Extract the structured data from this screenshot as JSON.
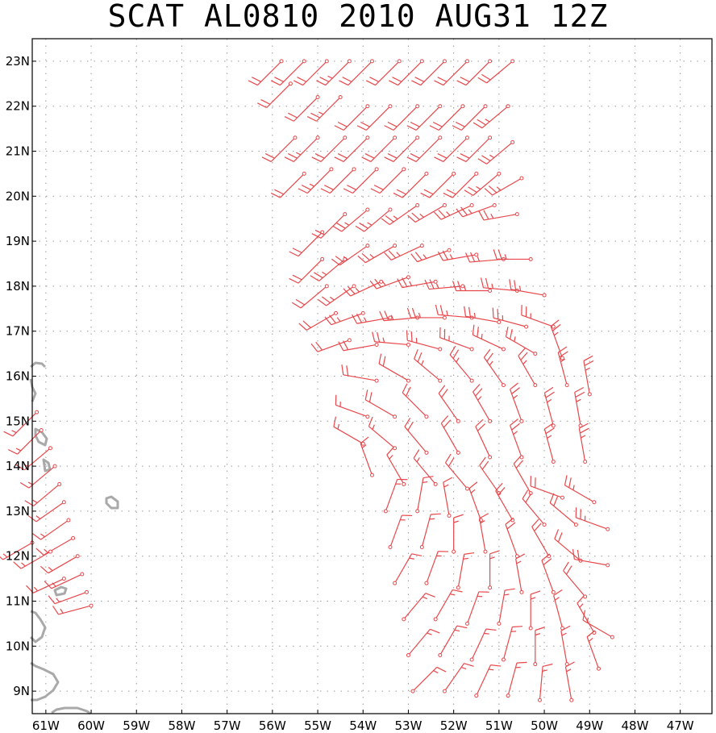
{
  "title": "SCAT AL0810 2010 AUG31 12Z",
  "map": {
    "lon_range": [
      -61.3,
      -46.3
    ],
    "lat_range": [
      8.5,
      23.5
    ],
    "lon_ticks": [
      -61,
      -60,
      -59,
      -58,
      -57,
      -56,
      -55,
      -54,
      -53,
      -52,
      -51,
      -50,
      -49,
      -48,
      -47
    ],
    "lat_ticks": [
      9,
      10,
      11,
      12,
      13,
      14,
      15,
      16,
      17,
      18,
      19,
      20,
      21,
      22,
      23
    ],
    "lon_labels": [
      "61W",
      "60W",
      "59W",
      "58W",
      "57W",
      "56W",
      "55W",
      "54W",
      "53W",
      "52W",
      "51W",
      "50W",
      "49W",
      "48W",
      "47W"
    ],
    "lat_labels": [
      "9N",
      "10N",
      "11N",
      "12N",
      "13N",
      "14N",
      "15N",
      "16N",
      "17N",
      "18N",
      "19N",
      "20N",
      "21N",
      "22N",
      "23N"
    ],
    "grid": "dotted",
    "colors": {
      "barb": "#e8474b",
      "coast": "#a9a9a9",
      "grid": "#9a9a9a",
      "frame": "#000000"
    }
  },
  "wind_barbs": [
    {
      "lon": -55.8,
      "lat": 23.0,
      "dir": 225,
      "spd": 20
    },
    {
      "lon": -55.3,
      "lat": 23.0,
      "dir": 225,
      "spd": 20
    },
    {
      "lon": -54.8,
      "lat": 23.0,
      "dir": 225,
      "spd": 20
    },
    {
      "lon": -54.3,
      "lat": 23.0,
      "dir": 225,
      "spd": 25
    },
    {
      "lon": -53.8,
      "lat": 23.0,
      "dir": 225,
      "spd": 20
    },
    {
      "lon": -53.2,
      "lat": 23.0,
      "dir": 225,
      "spd": 20
    },
    {
      "lon": -52.7,
      "lat": 23.0,
      "dir": 225,
      "spd": 20
    },
    {
      "lon": -52.2,
      "lat": 23.0,
      "dir": 225,
      "spd": 20
    },
    {
      "lon": -51.7,
      "lat": 23.0,
      "dir": 225,
      "spd": 20
    },
    {
      "lon": -51.2,
      "lat": 23.0,
      "dir": 225,
      "spd": 20
    },
    {
      "lon": -50.7,
      "lat": 23.0,
      "dir": 230,
      "spd": 20
    },
    {
      "lon": -55.6,
      "lat": 22.5,
      "dir": 225,
      "spd": 20
    },
    {
      "lon": -55.0,
      "lat": 22.2,
      "dir": 225,
      "spd": 20
    },
    {
      "lon": -54.5,
      "lat": 22.2,
      "dir": 225,
      "spd": 25
    },
    {
      "lon": -53.9,
      "lat": 22.0,
      "dir": 225,
      "spd": 20
    },
    {
      "lon": -53.4,
      "lat": 22.0,
      "dir": 225,
      "spd": 20
    },
    {
      "lon": -52.8,
      "lat": 22.0,
      "dir": 225,
      "spd": 20
    },
    {
      "lon": -52.3,
      "lat": 22.0,
      "dir": 225,
      "spd": 20
    },
    {
      "lon": -51.8,
      "lat": 22.0,
      "dir": 225,
      "spd": 20
    },
    {
      "lon": -51.3,
      "lat": 22.0,
      "dir": 225,
      "spd": 20
    },
    {
      "lon": -50.8,
      "lat": 22.0,
      "dir": 230,
      "spd": 25
    },
    {
      "lon": -55.5,
      "lat": 21.3,
      "dir": 225,
      "spd": 20
    },
    {
      "lon": -55.0,
      "lat": 21.3,
      "dir": 225,
      "spd": 25
    },
    {
      "lon": -54.4,
      "lat": 21.3,
      "dir": 225,
      "spd": 20
    },
    {
      "lon": -53.9,
      "lat": 21.3,
      "dir": 225,
      "spd": 20
    },
    {
      "lon": -53.3,
      "lat": 21.3,
      "dir": 225,
      "spd": 20
    },
    {
      "lon": -52.8,
      "lat": 21.3,
      "dir": 225,
      "spd": 20
    },
    {
      "lon": -52.3,
      "lat": 21.3,
      "dir": 225,
      "spd": 20
    },
    {
      "lon": -51.7,
      "lat": 21.3,
      "dir": 225,
      "spd": 20
    },
    {
      "lon": -51.2,
      "lat": 21.3,
      "dir": 225,
      "spd": 20
    },
    {
      "lon": -50.7,
      "lat": 21.2,
      "dir": 230,
      "spd": 25
    },
    {
      "lon": -55.3,
      "lat": 20.5,
      "dir": 225,
      "spd": 20
    },
    {
      "lon": -54.7,
      "lat": 20.6,
      "dir": 225,
      "spd": 25
    },
    {
      "lon": -54.2,
      "lat": 20.6,
      "dir": 225,
      "spd": 20
    },
    {
      "lon": -53.7,
      "lat": 20.6,
      "dir": 225,
      "spd": 20
    },
    {
      "lon": -53.1,
      "lat": 20.6,
      "dir": 225,
      "spd": 20
    },
    {
      "lon": -52.6,
      "lat": 20.5,
      "dir": 225,
      "spd": 20
    },
    {
      "lon": -52.0,
      "lat": 20.5,
      "dir": 225,
      "spd": 20
    },
    {
      "lon": -51.5,
      "lat": 20.5,
      "dir": 225,
      "spd": 20
    },
    {
      "lon": -51.0,
      "lat": 20.5,
      "dir": 230,
      "spd": 25
    },
    {
      "lon": -50.5,
      "lat": 20.4,
      "dir": 240,
      "spd": 25
    },
    {
      "lon": -54.9,
      "lat": 19.2,
      "dir": 225,
      "spd": 20
    },
    {
      "lon": -54.4,
      "lat": 19.6,
      "dir": 225,
      "spd": 20
    },
    {
      "lon": -53.9,
      "lat": 19.7,
      "dir": 230,
      "spd": 25
    },
    {
      "lon": -53.4,
      "lat": 19.7,
      "dir": 230,
      "spd": 25
    },
    {
      "lon": -52.8,
      "lat": 19.8,
      "dir": 235,
      "spd": 25
    },
    {
      "lon": -52.2,
      "lat": 19.8,
      "dir": 240,
      "spd": 25
    },
    {
      "lon": -51.6,
      "lat": 19.8,
      "dir": 245,
      "spd": 25
    },
    {
      "lon": -51.1,
      "lat": 19.8,
      "dir": 250,
      "spd": 25
    },
    {
      "lon": -50.6,
      "lat": 19.6,
      "dir": 260,
      "spd": 25
    },
    {
      "lon": -54.9,
      "lat": 18.6,
      "dir": 225,
      "spd": 20
    },
    {
      "lon": -54.4,
      "lat": 18.6,
      "dir": 230,
      "spd": 25
    },
    {
      "lon": -53.9,
      "lat": 18.9,
      "dir": 235,
      "spd": 25
    },
    {
      "lon": -53.3,
      "lat": 18.9,
      "dir": 240,
      "spd": 25
    },
    {
      "lon": -52.7,
      "lat": 18.9,
      "dir": 245,
      "spd": 25
    },
    {
      "lon": -52.1,
      "lat": 18.8,
      "dir": 250,
      "spd": 25
    },
    {
      "lon": -51.5,
      "lat": 18.7,
      "dir": 260,
      "spd": 25
    },
    {
      "lon": -50.9,
      "lat": 18.6,
      "dir": 265,
      "spd": 25
    },
    {
      "lon": -50.3,
      "lat": 18.6,
      "dir": 270,
      "spd": 25
    },
    {
      "lon": -54.8,
      "lat": 18.0,
      "dir": 230,
      "spd": 20
    },
    {
      "lon": -54.2,
      "lat": 18.0,
      "dir": 235,
      "spd": 25
    },
    {
      "lon": -53.6,
      "lat": 18.1,
      "dir": 245,
      "spd": 25
    },
    {
      "lon": -53.0,
      "lat": 18.2,
      "dir": 250,
      "spd": 25
    },
    {
      "lon": -52.4,
      "lat": 18.1,
      "dir": 260,
      "spd": 25
    },
    {
      "lon": -51.8,
      "lat": 18.0,
      "dir": 265,
      "spd": 25
    },
    {
      "lon": -51.2,
      "lat": 17.9,
      "dir": 270,
      "spd": 25
    },
    {
      "lon": -50.6,
      "lat": 17.9,
      "dir": 275,
      "spd": 25
    },
    {
      "lon": -50.0,
      "lat": 17.8,
      "dir": 280,
      "spd": 25
    },
    {
      "lon": -54.6,
      "lat": 17.4,
      "dir": 240,
      "spd": 20
    },
    {
      "lon": -54.0,
      "lat": 17.4,
      "dir": 250,
      "spd": 25
    },
    {
      "lon": -53.4,
      "lat": 17.3,
      "dir": 260,
      "spd": 25
    },
    {
      "lon": -52.8,
      "lat": 17.3,
      "dir": 265,
      "spd": 25
    },
    {
      "lon": -52.2,
      "lat": 17.3,
      "dir": 270,
      "spd": 25
    },
    {
      "lon": -51.6,
      "lat": 17.3,
      "dir": 275,
      "spd": 25
    },
    {
      "lon": -51.0,
      "lat": 17.2,
      "dir": 280,
      "spd": 25
    },
    {
      "lon": -50.4,
      "lat": 17.1,
      "dir": 285,
      "spd": 25
    },
    {
      "lon": -49.8,
      "lat": 17.1,
      "dir": 290,
      "spd": 25
    },
    {
      "lon": -54.3,
      "lat": 16.8,
      "dir": 250,
      "spd": 20
    },
    {
      "lon": -53.7,
      "lat": 16.7,
      "dir": 260,
      "spd": 20
    },
    {
      "lon": -53.0,
      "lat": 16.7,
      "dir": 275,
      "spd": 25
    },
    {
      "lon": -52.3,
      "lat": 16.6,
      "dir": 285,
      "spd": 25
    },
    {
      "lon": -51.6,
      "lat": 16.6,
      "dir": 290,
      "spd": 25
    },
    {
      "lon": -50.9,
      "lat": 16.6,
      "dir": 295,
      "spd": 25
    },
    {
      "lon": -50.2,
      "lat": 16.5,
      "dir": 300,
      "spd": 25
    },
    {
      "lon": -49.6,
      "lat": 16.4,
      "dir": 340,
      "spd": 25
    },
    {
      "lon": -53.7,
      "lat": 15.9,
      "dir": 280,
      "spd": 20
    },
    {
      "lon": -53.0,
      "lat": 15.9,
      "dir": 300,
      "spd": 20
    },
    {
      "lon": -52.3,
      "lat": 15.9,
      "dir": 310,
      "spd": 25
    },
    {
      "lon": -51.6,
      "lat": 15.9,
      "dir": 320,
      "spd": 25
    },
    {
      "lon": -50.9,
      "lat": 15.8,
      "dir": 325,
      "spd": 25
    },
    {
      "lon": -50.2,
      "lat": 15.8,
      "dir": 330,
      "spd": 25
    },
    {
      "lon": -49.5,
      "lat": 15.8,
      "dir": 345,
      "spd": 25
    },
    {
      "lon": -49.0,
      "lat": 15.6,
      "dir": 350,
      "spd": 25
    },
    {
      "lon": -53.9,
      "lat": 15.1,
      "dir": 290,
      "spd": 15
    },
    {
      "lon": -53.3,
      "lat": 15.1,
      "dir": 300,
      "spd": 20
    },
    {
      "lon": -52.6,
      "lat": 15.1,
      "dir": 315,
      "spd": 20
    },
    {
      "lon": -51.9,
      "lat": 15.0,
      "dir": 325,
      "spd": 20
    },
    {
      "lon": -51.2,
      "lat": 15.0,
      "dir": 330,
      "spd": 25
    },
    {
      "lon": -50.5,
      "lat": 15.0,
      "dir": 340,
      "spd": 25
    },
    {
      "lon": -49.8,
      "lat": 14.9,
      "dir": 345,
      "spd": 25
    },
    {
      "lon": -49.2,
      "lat": 14.9,
      "dir": 350,
      "spd": 25
    },
    {
      "lon": -54.0,
      "lat": 14.5,
      "dir": 300,
      "spd": 15
    },
    {
      "lon": -53.3,
      "lat": 14.4,
      "dir": 310,
      "spd": 15
    },
    {
      "lon": -52.6,
      "lat": 14.3,
      "dir": 320,
      "spd": 20
    },
    {
      "lon": -51.9,
      "lat": 14.3,
      "dir": 330,
      "spd": 20
    },
    {
      "lon": -51.2,
      "lat": 14.2,
      "dir": 335,
      "spd": 20
    },
    {
      "lon": -50.5,
      "lat": 14.2,
      "dir": 340,
      "spd": 25
    },
    {
      "lon": -49.8,
      "lat": 14.1,
      "dir": 345,
      "spd": 25
    },
    {
      "lon": -49.1,
      "lat": 14.1,
      "dir": 350,
      "spd": 25
    },
    {
      "lon": -53.8,
      "lat": 13.8,
      "dir": 340,
      "spd": 15
    },
    {
      "lon": -53.1,
      "lat": 13.6,
      "dir": 330,
      "spd": 15
    },
    {
      "lon": -52.4,
      "lat": 13.6,
      "dir": 320,
      "spd": 15
    },
    {
      "lon": -51.7,
      "lat": 13.5,
      "dir": 320,
      "spd": 20
    },
    {
      "lon": -51.0,
      "lat": 13.4,
      "dir": 325,
      "spd": 20
    },
    {
      "lon": -50.3,
      "lat": 13.4,
      "dir": 330,
      "spd": 20
    },
    {
      "lon": -49.6,
      "lat": 13.3,
      "dir": 290,
      "spd": 20
    },
    {
      "lon": -48.9,
      "lat": 13.2,
      "dir": 300,
      "spd": 25
    },
    {
      "lon": -53.5,
      "lat": 13.0,
      "dir": 20,
      "spd": 15
    },
    {
      "lon": -52.8,
      "lat": 13.0,
      "dir": 10,
      "spd": 15
    },
    {
      "lon": -52.1,
      "lat": 12.9,
      "dir": 350,
      "spd": 15
    },
    {
      "lon": -51.4,
      "lat": 12.8,
      "dir": 340,
      "spd": 15
    },
    {
      "lon": -50.7,
      "lat": 12.8,
      "dir": 330,
      "spd": 20
    },
    {
      "lon": -50.0,
      "lat": 12.7,
      "dir": 320,
      "spd": 20
    },
    {
      "lon": -49.3,
      "lat": 12.7,
      "dir": 310,
      "spd": 20
    },
    {
      "lon": -48.6,
      "lat": 12.6,
      "dir": 290,
      "spd": 25
    },
    {
      "lon": -53.4,
      "lat": 12.2,
      "dir": 20,
      "spd": 15
    },
    {
      "lon": -52.7,
      "lat": 12.2,
      "dir": 15,
      "spd": 15
    },
    {
      "lon": -52.0,
      "lat": 12.1,
      "dir": 360,
      "spd": 15
    },
    {
      "lon": -51.3,
      "lat": 12.1,
      "dir": 350,
      "spd": 15
    },
    {
      "lon": -50.6,
      "lat": 12.0,
      "dir": 340,
      "spd": 20
    },
    {
      "lon": -49.9,
      "lat": 12.0,
      "dir": 330,
      "spd": 20
    },
    {
      "lon": -49.2,
      "lat": 11.9,
      "dir": 310,
      "spd": 20
    },
    {
      "lon": -48.6,
      "lat": 11.8,
      "dir": 280,
      "spd": 20
    },
    {
      "lon": -53.3,
      "lat": 11.4,
      "dir": 30,
      "spd": 15
    },
    {
      "lon": -52.6,
      "lat": 11.4,
      "dir": 20,
      "spd": 15
    },
    {
      "lon": -51.9,
      "lat": 11.3,
      "dir": 10,
      "spd": 15
    },
    {
      "lon": -51.2,
      "lat": 11.3,
      "dir": 360,
      "spd": 15
    },
    {
      "lon": -50.5,
      "lat": 11.2,
      "dir": 350,
      "spd": 15
    },
    {
      "lon": -49.8,
      "lat": 11.2,
      "dir": 340,
      "spd": 20
    },
    {
      "lon": -49.1,
      "lat": 11.1,
      "dir": 320,
      "spd": 20
    },
    {
      "lon": -53.1,
      "lat": 10.6,
      "dir": 40,
      "spd": 15
    },
    {
      "lon": -52.4,
      "lat": 10.6,
      "dir": 30,
      "spd": 15
    },
    {
      "lon": -51.7,
      "lat": 10.5,
      "dir": 20,
      "spd": 15
    },
    {
      "lon": -51.0,
      "lat": 10.5,
      "dir": 10,
      "spd": 15
    },
    {
      "lon": -50.3,
      "lat": 10.4,
      "dir": 360,
      "spd": 15
    },
    {
      "lon": -49.6,
      "lat": 10.4,
      "dir": 345,
      "spd": 15
    },
    {
      "lon": -48.9,
      "lat": 10.3,
      "dir": 330,
      "spd": 15
    },
    {
      "lon": -48.5,
      "lat": 10.2,
      "dir": 300,
      "spd": 15
    },
    {
      "lon": -53.0,
      "lat": 9.8,
      "dir": 40,
      "spd": 15
    },
    {
      "lon": -52.3,
      "lat": 9.8,
      "dir": 30,
      "spd": 15
    },
    {
      "lon": -51.6,
      "lat": 9.7,
      "dir": 25,
      "spd": 15
    },
    {
      "lon": -50.9,
      "lat": 9.7,
      "dir": 15,
      "spd": 15
    },
    {
      "lon": -50.2,
      "lat": 9.6,
      "dir": 360,
      "spd": 15
    },
    {
      "lon": -49.5,
      "lat": 9.6,
      "dir": 350,
      "spd": 15
    },
    {
      "lon": -48.8,
      "lat": 9.5,
      "dir": 340,
      "spd": 15
    },
    {
      "lon": -52.9,
      "lat": 9.0,
      "dir": 45,
      "spd": 15
    },
    {
      "lon": -52.2,
      "lat": 9.0,
      "dir": 35,
      "spd": 15
    },
    {
      "lon": -51.5,
      "lat": 8.9,
      "dir": 25,
      "spd": 15
    },
    {
      "lon": -50.8,
      "lat": 8.9,
      "dir": 15,
      "spd": 15
    },
    {
      "lon": -50.1,
      "lat": 8.8,
      "dir": 5,
      "spd": 15
    },
    {
      "lon": -49.4,
      "lat": 8.8,
      "dir": 350,
      "spd": 15
    },
    {
      "lon": -61.2,
      "lat": 15.2,
      "dir": 225,
      "spd": 15
    },
    {
      "lon": -61.1,
      "lat": 14.8,
      "dir": 225,
      "spd": 15
    },
    {
      "lon": -60.9,
      "lat": 14.4,
      "dir": 230,
      "spd": 15
    },
    {
      "lon": -60.8,
      "lat": 14.0,
      "dir": 230,
      "spd": 15
    },
    {
      "lon": -60.7,
      "lat": 13.6,
      "dir": 230,
      "spd": 15
    },
    {
      "lon": -60.6,
      "lat": 13.2,
      "dir": 235,
      "spd": 15
    },
    {
      "lon": -60.5,
      "lat": 12.8,
      "dir": 235,
      "spd": 15
    },
    {
      "lon": -60.4,
      "lat": 12.4,
      "dir": 240,
      "spd": 15
    },
    {
      "lon": -60.3,
      "lat": 12.0,
      "dir": 240,
      "spd": 15
    },
    {
      "lon": -60.2,
      "lat": 11.6,
      "dir": 245,
      "spd": 15
    },
    {
      "lon": -60.1,
      "lat": 11.2,
      "dir": 250,
      "spd": 15
    },
    {
      "lon": -60.0,
      "lat": 10.9,
      "dir": 255,
      "spd": 15
    },
    {
      "lon": -61.3,
      "lat": 12.3,
      "dir": 240,
      "spd": 15
    },
    {
      "lon": -60.9,
      "lat": 12.1,
      "dir": 240,
      "spd": 15
    },
    {
      "lon": -60.6,
      "lat": 11.5,
      "dir": 245,
      "spd": 15
    }
  ]
}
